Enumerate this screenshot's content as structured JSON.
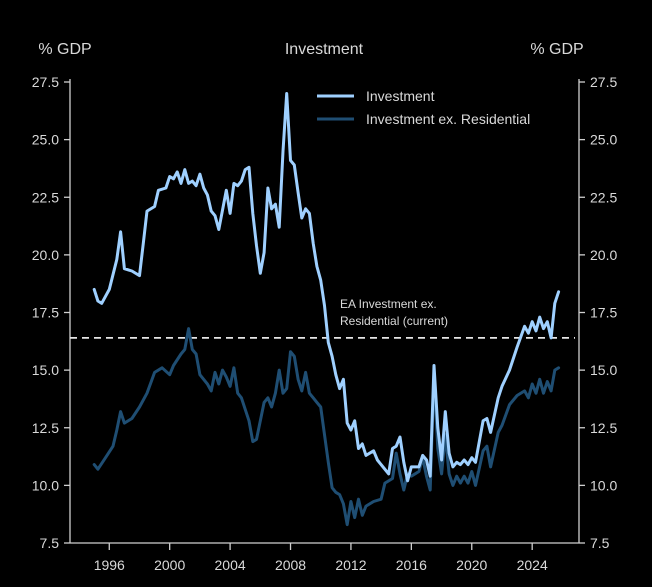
{
  "chart_data": {
    "type": "line",
    "title": "Investment",
    "ylabel_left": "% GDP",
    "ylabel_right": "% GDP",
    "xlabel": "",
    "xlim": [
      1993.4,
      2027.1
    ],
    "ylim": [
      7.5,
      27.5
    ],
    "yticks": [
      7.5,
      10.0,
      12.5,
      15.0,
      17.5,
      20.0,
      22.5,
      25.0,
      27.5
    ],
    "ytick_labels": [
      "7.5",
      "10.0",
      "12.5",
      "15.0",
      "17.5",
      "20.0",
      "22.5",
      "25.0",
      "27.5"
    ],
    "xticks": [
      1996,
      2000,
      2004,
      2008,
      2012,
      2016,
      2020,
      2024
    ],
    "xtick_labels": [
      "1996",
      "2000",
      "2004",
      "2008",
      "2012",
      "2016",
      "2020",
      "2024"
    ],
    "grid": false,
    "legend_position": "top-center",
    "colors": {
      "background": "#000000",
      "axis": "#cfcfcf",
      "text": "#d9d9d9",
      "investment": "#9fd0ff",
      "investment_ex_res": "#1f4e73",
      "reference": "#e6e6e6"
    },
    "reference_line": {
      "value": 16.4,
      "label_line1": "EA Investment ex.",
      "label_line2": "Residential (current)"
    },
    "series": [
      {
        "name": "Investment",
        "x": [
          1995.0,
          1995.25,
          1995.5,
          1996.0,
          1996.5,
          1996.75,
          1997.0,
          1997.5,
          1998.0,
          1998.25,
          1998.5,
          1999.0,
          1999.25,
          1999.75,
          2000.0,
          2000.25,
          2000.5,
          2000.75,
          2001.0,
          2001.25,
          2001.5,
          2001.75,
          2002.0,
          2002.25,
          2002.5,
          2002.75,
          2003.0,
          2003.25,
          2003.75,
          2004.0,
          2004.25,
          2004.5,
          2004.75,
          2005.0,
          2005.25,
          2005.5,
          2005.75,
          2006.0,
          2006.25,
          2006.5,
          2006.75,
          2007.0,
          2007.25,
          2007.5,
          2007.75,
          2008.0,
          2008.25,
          2008.5,
          2008.75,
          2009.0,
          2009.25,
          2009.5,
          2009.75,
          2010.0,
          2010.25,
          2010.5,
          2010.75,
          2011.0,
          2011.25,
          2011.5,
          2011.75,
          2012.0,
          2012.25,
          2012.5,
          2012.75,
          2013.0,
          2013.5,
          2013.75,
          2014.0,
          2014.5,
          2014.75,
          2015.0,
          2015.25,
          2015.5,
          2015.75,
          2016.0,
          2016.5,
          2016.75,
          2017.0,
          2017.25,
          2017.5,
          2017.75,
          2018.0,
          2018.25,
          2018.5,
          2018.75,
          2019.0,
          2019.25,
          2019.5,
          2019.75,
          2020.0,
          2020.25,
          2020.75,
          2021.0,
          2021.25,
          2021.75,
          2022.0,
          2022.5,
          2023.0,
          2023.5,
          2023.75,
          2024.0,
          2024.25,
          2024.5,
          2024.75,
          2025.0,
          2025.25,
          2025.5,
          2025.75
        ],
        "values": [
          18.5,
          18.0,
          17.9,
          18.5,
          19.8,
          21.0,
          19.4,
          19.3,
          19.1,
          20.5,
          21.9,
          22.1,
          22.8,
          22.9,
          23.4,
          23.3,
          23.6,
          23.1,
          23.7,
          23.1,
          23.2,
          23.0,
          23.5,
          22.9,
          22.6,
          21.9,
          21.7,
          21.1,
          22.8,
          21.8,
          23.1,
          23.0,
          23.2,
          23.7,
          23.8,
          21.8,
          20.4,
          19.2,
          20.1,
          22.9,
          22.0,
          22.2,
          21.2,
          24.5,
          27.0,
          24.1,
          23.9,
          22.7,
          21.6,
          22.0,
          21.8,
          20.5,
          19.5,
          18.9,
          17.8,
          16.2,
          15.6,
          14.8,
          14.2,
          14.6,
          12.7,
          12.4,
          12.8,
          11.6,
          11.8,
          11.3,
          11.5,
          11.1,
          10.9,
          10.5,
          11.6,
          11.7,
          12.1,
          11.0,
          10.2,
          10.8,
          10.8,
          11.3,
          11.1,
          10.4,
          15.2,
          12.5,
          11.1,
          13.2,
          11.4,
          10.8,
          11.0,
          10.9,
          11.1,
          10.9,
          11.2,
          11.0,
          12.8,
          12.9,
          12.3,
          13.8,
          14.3,
          15.0,
          16.0,
          16.9,
          16.6,
          17.1,
          16.7,
          17.3,
          16.8,
          17.1,
          16.4,
          17.9,
          18.4
        ]
      },
      {
        "name": "Investment ex. Residential",
        "x": [
          1995.0,
          1995.25,
          1995.75,
          1996.25,
          1996.5,
          1996.75,
          1997.0,
          1997.5,
          1998.0,
          1998.5,
          1999.0,
          1999.5,
          2000.0,
          2000.25,
          2000.75,
          2001.0,
          2001.25,
          2001.5,
          2001.75,
          2002.0,
          2002.5,
          2002.75,
          2003.0,
          2003.25,
          2003.5,
          2003.75,
          2004.0,
          2004.25,
          2004.5,
          2004.75,
          2005.25,
          2005.5,
          2005.75,
          2006.25,
          2006.5,
          2006.75,
          2007.0,
          2007.25,
          2007.5,
          2007.75,
          2008.0,
          2008.25,
          2008.5,
          2008.75,
          2009.0,
          2009.25,
          2009.5,
          2009.75,
          2010.0,
          2010.25,
          2010.5,
          2010.75,
          2011.0,
          2011.25,
          2011.5,
          2011.75,
          2012.0,
          2012.25,
          2012.5,
          2012.75,
          2013.0,
          2013.5,
          2014.0,
          2014.25,
          2014.75,
          2015.0,
          2015.25,
          2015.5,
          2015.75,
          2016.0,
          2016.5,
          2016.75,
          2017.0,
          2017.25,
          2017.5,
          2017.75,
          2018.0,
          2018.25,
          2018.5,
          2018.75,
          2019.0,
          2019.25,
          2019.5,
          2019.75,
          2020.0,
          2020.25,
          2020.75,
          2021.0,
          2021.25,
          2021.75,
          2022.0,
          2022.5,
          2023.0,
          2023.5,
          2023.75,
          2024.0,
          2024.25,
          2024.5,
          2024.75,
          2025.0,
          2025.25,
          2025.5,
          2025.75
        ],
        "values": [
          10.9,
          10.7,
          11.2,
          11.7,
          12.4,
          13.2,
          12.7,
          12.9,
          13.4,
          14.0,
          14.9,
          15.1,
          14.8,
          15.2,
          15.7,
          15.9,
          16.8,
          15.9,
          15.7,
          14.8,
          14.4,
          14.1,
          14.9,
          14.4,
          15.0,
          14.7,
          14.3,
          15.1,
          14.0,
          13.8,
          12.8,
          11.9,
          12.0,
          13.6,
          13.8,
          13.4,
          14.0,
          15.0,
          14.0,
          14.2,
          15.8,
          15.6,
          14.6,
          14.1,
          14.9,
          14.0,
          13.8,
          13.6,
          13.4,
          12.2,
          11.0,
          9.9,
          9.7,
          9.6,
          9.2,
          8.3,
          9.3,
          8.6,
          9.4,
          8.7,
          9.1,
          9.3,
          9.4,
          10.1,
          10.3,
          11.4,
          10.5,
          9.8,
          10.5,
          10.4,
          10.6,
          11.2,
          10.4,
          9.8,
          14.8,
          11.6,
          10.5,
          12.2,
          10.5,
          10.0,
          10.4,
          10.1,
          10.4,
          10.1,
          10.6,
          10.0,
          11.5,
          11.7,
          10.8,
          12.3,
          12.6,
          13.5,
          13.9,
          14.1,
          13.8,
          14.4,
          14.0,
          14.6,
          14.0,
          14.5,
          14.1,
          15.0,
          15.1
        ]
      }
    ]
  }
}
